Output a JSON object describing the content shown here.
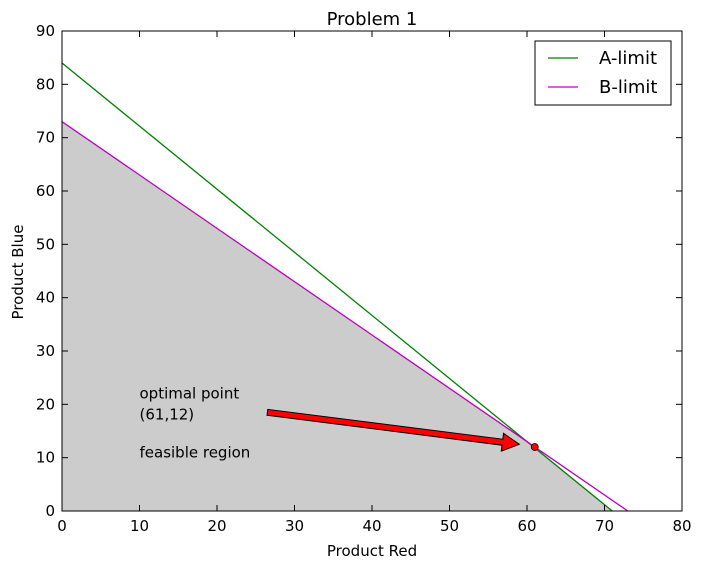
{
  "chart_data": {
    "type": "line",
    "title": "Problem 1",
    "xlabel": "Product Red",
    "ylabel": "Product Blue",
    "xlim": [
      0,
      80
    ],
    "ylim": [
      0,
      90
    ],
    "xticks": [
      0,
      10,
      20,
      30,
      40,
      50,
      60,
      70,
      80
    ],
    "yticks": [
      0,
      10,
      20,
      30,
      40,
      50,
      60,
      70,
      80,
      90
    ],
    "grid": false,
    "legend_position": "top-right",
    "series": [
      {
        "name": "A-limit",
        "color": "#008000",
        "x": [
          0,
          71
        ],
        "y": [
          84,
          0
        ]
      },
      {
        "name": "B-limit",
        "color": "#bf00bf",
        "x": [
          0,
          73
        ],
        "y": [
          73,
          0
        ]
      }
    ],
    "feasible_region": {
      "color": "#cccccc",
      "points": [
        [
          0,
          0
        ],
        [
          0,
          73
        ],
        [
          61,
          12
        ],
        [
          71,
          0
        ]
      ]
    },
    "optimal_point": {
      "x": 61,
      "y": 12,
      "color": "#ff0000"
    },
    "annotations": [
      {
        "id": "optimal",
        "lines": [
          "optimal point",
          "(61,12)"
        ],
        "x": 10,
        "y": 22,
        "arrow_from": [
          26.5,
          18.5
        ],
        "arrow_to": [
          59,
          12.5
        ],
        "arrow_color": "#ff0000"
      },
      {
        "id": "feasible",
        "lines": [
          "feasible region"
        ],
        "x": 10,
        "y": 10
      }
    ]
  }
}
